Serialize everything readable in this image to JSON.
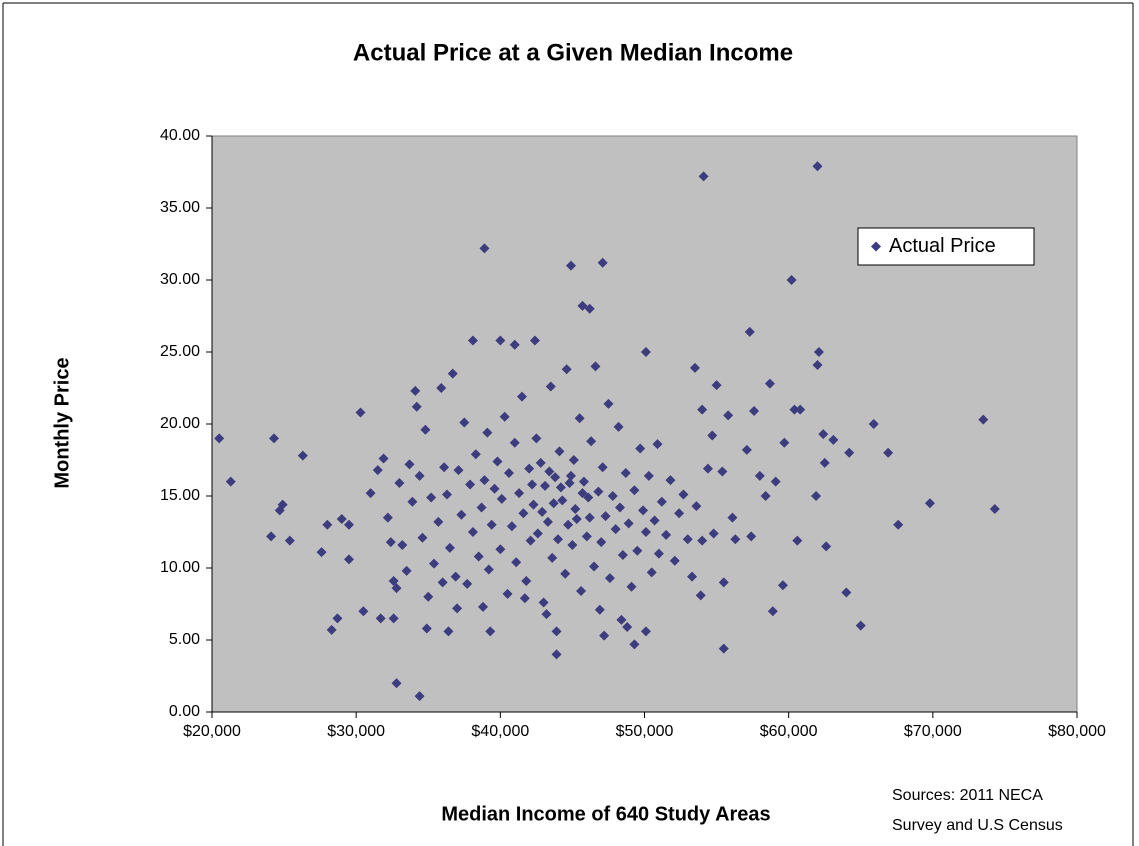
{
  "chart_data": {
    "type": "scatter",
    "title": "Actual Price at a Given Median Income",
    "x_label": "Median Income of 640 Study Areas",
    "y_label": "Monthly Price",
    "source": [
      "Sources: 2011 NECA",
      "Survey and U.S Census"
    ],
    "xlim": [
      20000,
      80000
    ],
    "ylim": [
      0,
      40
    ],
    "xticks": [
      {
        "value": 20000,
        "label": "$20,000"
      },
      {
        "value": 30000,
        "label": "$30,000"
      },
      {
        "value": 40000,
        "label": "$40,000"
      },
      {
        "value": 50000,
        "label": "$50,000"
      },
      {
        "value": 60000,
        "label": "$60,000"
      },
      {
        "value": 70000,
        "label": "$70,000"
      },
      {
        "value": 80000,
        "label": "$80,000"
      }
    ],
    "yticks": [
      {
        "value": 0,
        "label": "0.00"
      },
      {
        "value": 5,
        "label": "5.00"
      },
      {
        "value": 10,
        "label": "10.00"
      },
      {
        "value": 15,
        "label": "15.00"
      },
      {
        "value": 20,
        "label": "20.00"
      },
      {
        "value": 25,
        "label": "25.00"
      },
      {
        "value": 30,
        "label": "30.00"
      },
      {
        "value": 35,
        "label": "35.00"
      },
      {
        "value": 40,
        "label": "40.00"
      }
    ],
    "legend": "upper right",
    "x": [
      20500,
      21300,
      24100,
      24300,
      24700,
      24900,
      25400,
      26300,
      27600,
      28000,
      28300,
      28700,
      29000,
      29500,
      29500,
      30300,
      30500,
      31700,
      32600,
      32800,
      34400,
      34900,
      36400,
      37000,
      38100,
      38900,
      39300,
      40000,
      41000,
      42400,
      43900,
      43900,
      44900,
      45700,
      46200,
      47100,
      47200,
      48800,
      49300,
      50100,
      50100,
      53500,
      53900,
      54000,
      54100,
      54700,
      55000,
      55400,
      55500,
      55500,
      55800,
      56100,
      56300,
      57100,
      57300,
      57400,
      57600,
      58000,
      58400,
      58700,
      58900,
      59100,
      59600,
      59700,
      60200,
      60400,
      60600,
      60800,
      61900,
      62000,
      62100,
      62000,
      62400,
      62500,
      62600,
      63100,
      64000,
      64200,
      65000,
      65900,
      66900,
      67600,
      69800,
      73500,
      74300,
      31000,
      31500,
      31900,
      32200,
      32400,
      32600,
      32800,
      33000,
      33200,
      33500,
      33700,
      33900,
      34100,
      34200,
      34400,
      34600,
      34800,
      35000,
      35200,
      35400,
      35700,
      35900,
      36100,
      36300,
      36500,
      36700,
      36900,
      37100,
      37300,
      37500,
      37700,
      37900,
      38100,
      38300,
      38500,
      38700,
      38900,
      39100,
      39200,
      39400,
      39600,
      39800,
      40000,
      40100,
      40300,
      40500,
      40600,
      40800,
      41000,
      41100,
      41300,
      41500,
      41600,
      41800,
      42000,
      42100,
      42300,
      42500,
      42600,
      42800,
      43000,
      43100,
      43300,
      43500,
      43600,
      43800,
      44000,
      44100,
      44300,
      44500,
      44600,
      44800,
      45000,
      45100,
      45300,
      45500,
      45600,
      45800,
      46000,
      46100,
      46300,
      46500,
      46600,
      46800,
      47000,
      47100,
      47300,
      47500,
      47600,
      47800,
      48000,
      48200,
      48300,
      48500,
      48700,
      48900,
      49100,
      49300,
      49500,
      49700,
      49900,
      50100,
      50300,
      50500,
      50700,
      50900,
      51000,
      51200,
      51500,
      51800,
      52100,
      52400,
      52700,
      53000,
      53300,
      53600,
      54000,
      54400,
      54800,
      41700,
      43200,
      46900,
      48400,
      38800,
      36000,
      42900,
      43700,
      44200,
      44700,
      45200,
      45700,
      46200,
      42200,
      43400,
      44900
    ],
    "series": [
      {
        "name": "Actual Price",
        "color": "#3c3c7e",
        "values": [
          19.0,
          16.0,
          12.2,
          19.0,
          14.0,
          14.4,
          11.9,
          17.8,
          11.1,
          13.0,
          5.7,
          6.5,
          13.4,
          13.0,
          10.6,
          20.8,
          7.0,
          6.5,
          6.5,
          2.0,
          1.1,
          5.8,
          5.6,
          7.2,
          25.8,
          32.2,
          5.6,
          25.8,
          25.5,
          25.8,
          4.0,
          5.6,
          31.0,
          28.2,
          28.0,
          31.2,
          5.3,
          5.9,
          4.7,
          25.0,
          5.6,
          23.9,
          8.1,
          21.0,
          37.2,
          19.2,
          22.7,
          16.7,
          9.0,
          4.4,
          20.6,
          13.5,
          12.0,
          18.2,
          26.4,
          12.2,
          20.9,
          16.4,
          15.0,
          22.8,
          7.0,
          16.0,
          8.8,
          18.7,
          30.0,
          21.0,
          11.9,
          21.0,
          15.0,
          24.1,
          25.0,
          37.9,
          19.3,
          17.3,
          11.5,
          18.9,
          8.3,
          18.0,
          6.0,
          20.0,
          18.0,
          13.0,
          14.5,
          20.3,
          14.1,
          15.2,
          16.8,
          17.6,
          13.5,
          11.8,
          9.1,
          8.6,
          15.9,
          11.6,
          9.8,
          17.2,
          14.6,
          22.3,
          21.2,
          16.4,
          12.1,
          19.6,
          8.0,
          14.9,
          10.3,
          13.2,
          22.5,
          17.0,
          15.1,
          11.4,
          23.5,
          9.4,
          16.8,
          13.7,
          20.1,
          8.9,
          15.8,
          12.5,
          17.9,
          10.8,
          14.2,
          16.1,
          19.4,
          9.9,
          13.0,
          15.5,
          17.4,
          11.3,
          14.8,
          20.5,
          8.2,
          16.6,
          12.9,
          18.7,
          10.4,
          15.2,
          21.9,
          13.8,
          9.1,
          16.9,
          11.9,
          14.4,
          19.0,
          12.4,
          17.3,
          7.6,
          15.7,
          13.2,
          22.6,
          10.7,
          16.3,
          12.0,
          18.1,
          14.7,
          9.6,
          23.8,
          15.9,
          11.6,
          17.5,
          13.4,
          20.4,
          8.4,
          16.0,
          12.2,
          14.9,
          18.8,
          10.1,
          24.0,
          15.3,
          11.8,
          17.0,
          13.6,
          21.4,
          9.3,
          15.0,
          12.7,
          19.8,
          14.2,
          10.9,
          16.6,
          13.1,
          8.7,
          15.4,
          11.2,
          18.3,
          14.0,
          12.5,
          16.4,
          9.7,
          13.3,
          18.6,
          11.0,
          14.6,
          12.3,
          16.1,
          10.5,
          13.8,
          15.1,
          12.0,
          9.4,
          14.3,
          11.9,
          16.9,
          12.4,
          7.9,
          6.8,
          7.1,
          6.4,
          7.3,
          9.0,
          13.9,
          14.5,
          15.6,
          13.0,
          14.1,
          15.2,
          13.5,
          15.8,
          16.7,
          16.4
        ]
      }
    ]
  }
}
